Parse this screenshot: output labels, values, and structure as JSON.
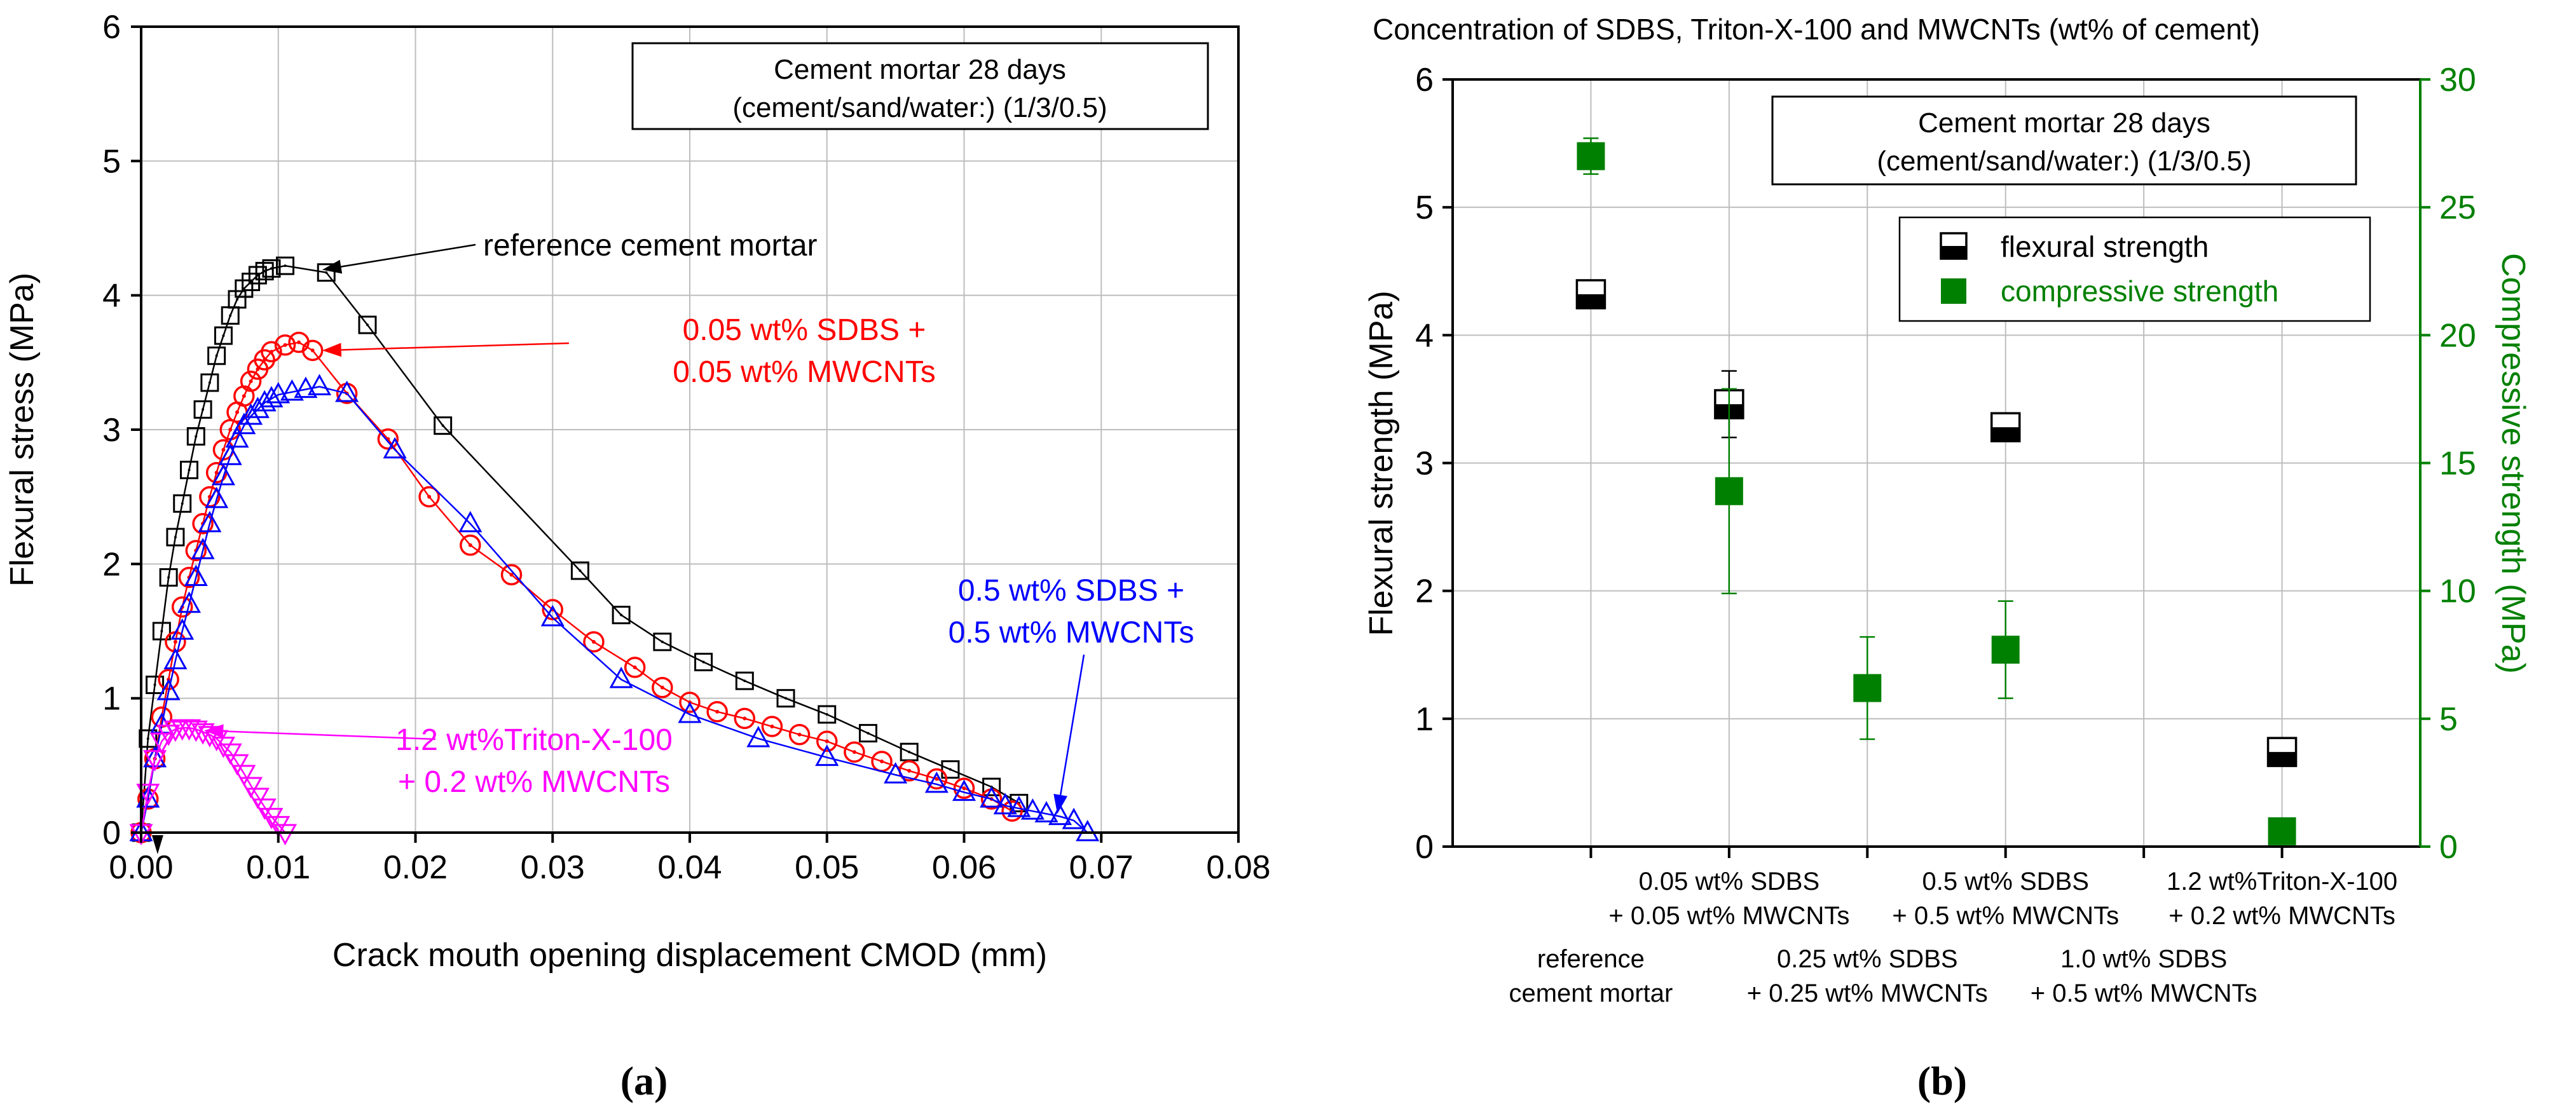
{
  "chart_data": [
    {
      "id": "a",
      "type": "line",
      "panel_label": "(a)",
      "xlabel": "Crack mouth opening displacement CMOD (mm)",
      "ylabel": "Flexural stress (MPa)",
      "xlim": [
        0,
        0.08
      ],
      "ylim": [
        0,
        6
      ],
      "xticks": [
        0.0,
        0.01,
        0.02,
        0.03,
        0.04,
        0.05,
        0.06,
        0.07,
        0.08
      ],
      "xtick_labels": [
        "0.00",
        "0.01",
        "0.02",
        "0.03",
        "0.04",
        "0.05",
        "0.06",
        "0.07",
        "0.08"
      ],
      "yticks": [
        0,
        1,
        2,
        3,
        4,
        5,
        6
      ],
      "ytick_labels": [
        "0",
        "1",
        "2",
        "3",
        "4",
        "5",
        "6"
      ],
      "box": {
        "line1": "Cement mortar 28 days",
        "line2": "(cement/sand/water:) (1/3/0.5)"
      },
      "series": [
        {
          "name": "reference cement mortar",
          "label_lines": [
            "reference cement mortar"
          ],
          "marker": "square",
          "color": "#000000",
          "x": [
            0,
            0.0005,
            0.001,
            0.0015,
            0.002,
            0.0025,
            0.003,
            0.0035,
            0.004,
            0.0045,
            0.005,
            0.0055,
            0.006,
            0.0065,
            0.007,
            0.0075,
            0.008,
            0.0085,
            0.009,
            0.0095,
            0.0105,
            0.0135,
            0.0165,
            0.022,
            0.032,
            0.035,
            0.038,
            0.041,
            0.044,
            0.047,
            0.05,
            0.053,
            0.056,
            0.059,
            0.062,
            0.064
          ],
          "y": [
            0,
            0.7,
            1.1,
            1.5,
            1.9,
            2.2,
            2.45,
            2.7,
            2.95,
            3.15,
            3.35,
            3.55,
            3.7,
            3.85,
            3.97,
            4.05,
            4.1,
            4.15,
            4.18,
            4.2,
            4.22,
            4.17,
            3.78,
            3.03,
            1.95,
            1.62,
            1.42,
            1.27,
            1.13,
            1.0,
            0.88,
            0.74,
            0.6,
            0.47,
            0.34,
            0.22
          ]
        },
        {
          "name": "0.05 wt% SDBS + 0.05 wt% MWCNTs",
          "label_lines": [
            "0.05 wt% SDBS +",
            "0.05 wt% MWCNTs"
          ],
          "marker": "circle-dot",
          "color": "#ff0000",
          "x": [
            0,
            0.0005,
            0.001,
            0.0015,
            0.002,
            0.0025,
            0.003,
            0.0035,
            0.004,
            0.0045,
            0.005,
            0.0055,
            0.006,
            0.0065,
            0.007,
            0.0075,
            0.008,
            0.0085,
            0.009,
            0.0095,
            0.0105,
            0.0115,
            0.0125,
            0.015,
            0.018,
            0.021,
            0.024,
            0.027,
            0.03,
            0.033,
            0.036,
            0.038,
            0.04,
            0.042,
            0.044,
            0.046,
            0.048,
            0.05,
            0.052,
            0.054,
            0.056,
            0.058,
            0.06,
            0.062,
            0.0635
          ],
          "y": [
            0,
            0.25,
            0.55,
            0.86,
            1.14,
            1.42,
            1.68,
            1.9,
            2.1,
            2.3,
            2.5,
            2.68,
            2.85,
            3.0,
            3.13,
            3.25,
            3.36,
            3.45,
            3.52,
            3.58,
            3.63,
            3.65,
            3.59,
            3.27,
            2.93,
            2.5,
            2.14,
            1.92,
            1.66,
            1.42,
            1.23,
            1.08,
            0.97,
            0.9,
            0.85,
            0.79,
            0.73,
            0.68,
            0.6,
            0.53,
            0.46,
            0.4,
            0.33,
            0.25,
            0.16
          ]
        },
        {
          "name": "0.5 wt% SDBS + 0.5 wt% MWCNTs",
          "label_lines": [
            "0.5 wt% SDBS +",
            "0.5 wt% MWCNTs"
          ],
          "marker": "triangle",
          "color": "#0000ff",
          "x": [
            0,
            0.0005,
            0.001,
            0.0015,
            0.002,
            0.0025,
            0.003,
            0.0035,
            0.004,
            0.0045,
            0.005,
            0.0055,
            0.006,
            0.0065,
            0.007,
            0.0075,
            0.008,
            0.0085,
            0.009,
            0.0095,
            0.01,
            0.011,
            0.012,
            0.013,
            0.015,
            0.0185,
            0.024,
            0.03,
            0.035,
            0.04,
            0.045,
            0.05,
            0.055,
            0.058,
            0.06,
            0.062,
            0.063,
            0.064,
            0.065,
            0.066,
            0.067,
            0.068,
            0.069
          ],
          "y": [
            0,
            0.25,
            0.55,
            0.8,
            1.05,
            1.28,
            1.5,
            1.7,
            1.9,
            2.1,
            2.3,
            2.48,
            2.65,
            2.8,
            2.93,
            3.03,
            3.1,
            3.15,
            3.2,
            3.23,
            3.26,
            3.28,
            3.3,
            3.32,
            3.27,
            2.85,
            2.3,
            1.6,
            1.14,
            0.88,
            0.7,
            0.56,
            0.43,
            0.36,
            0.3,
            0.25,
            0.2,
            0.18,
            0.16,
            0.14,
            0.12,
            0.09,
            0.0
          ]
        },
        {
          "name": "1.2 wt%Triton-X-100 + 0.2 wt% MWCNTs",
          "label_lines": [
            "1.2 wt%Triton-X-100",
            "+ 0.2 wt% MWCNTs"
          ],
          "marker": "triangle-down",
          "color": "#ff00ff",
          "x": [
            0,
            0.0005,
            0.001,
            0.0015,
            0.002,
            0.0025,
            0.003,
            0.0035,
            0.004,
            0.0045,
            0.005,
            0.0055,
            0.006,
            0.0065,
            0.007,
            0.0075,
            0.008,
            0.0085,
            0.009,
            0.0095,
            0.01,
            0.0105
          ],
          "y": [
            0,
            0.3,
            0.55,
            0.68,
            0.74,
            0.77,
            0.78,
            0.78,
            0.77,
            0.75,
            0.73,
            0.7,
            0.65,
            0.6,
            0.52,
            0.44,
            0.35,
            0.27,
            0.19,
            0.12,
            0.06,
            0.0
          ]
        }
      ]
    },
    {
      "id": "b",
      "type": "scatter",
      "panel_label": "(b)",
      "title": "Concentration of SDBS, Triton-X-100 and MWCNTs (wt% of cement)",
      "ylabel": "Flexural strength (MPa)",
      "y2label": "Compressive strength (MPa)",
      "ylim": [
        0,
        6
      ],
      "y2lim": [
        0,
        30
      ],
      "yticks": [
        0,
        1,
        2,
        3,
        4,
        5,
        6
      ],
      "ytick_labels": [
        "0",
        "1",
        "2",
        "3",
        "4",
        "5",
        "6"
      ],
      "y2ticks": [
        0,
        5,
        10,
        15,
        20,
        25,
        30
      ],
      "y2tick_labels": [
        "0",
        "5",
        "10",
        "15",
        "20",
        "25",
        "30"
      ],
      "box": {
        "line1": "Cement mortar 28 days",
        "line2": "(cement/sand/water:) (1/3/0.5)"
      },
      "legend": {
        "flexural": "flexural strength",
        "compressive": "compressive strength",
        "position": "top-right"
      },
      "categories": [
        {
          "lines": [
            "reference",
            "cement mortar"
          ],
          "row": "low"
        },
        {
          "lines": [
            "0.05 wt% SDBS",
            "+ 0.05 wt% MWCNTs"
          ],
          "row": "high"
        },
        {
          "lines": [
            "0.25 wt% SDBS",
            "+ 0.25 wt% MWCNTs"
          ],
          "row": "low"
        },
        {
          "lines": [
            "0.5 wt% SDBS",
            "+ 0.5 wt% MWCNTs"
          ],
          "row": "high"
        },
        {
          "lines": [
            "1.0 wt% SDBS",
            "+ 0.5 wt% MWCNTs"
          ],
          "row": "low"
        },
        {
          "lines": [
            "1.2 wt%Triton-X-100",
            "+ 0.2 wt% MWCNTs"
          ],
          "row": "high"
        }
      ],
      "series": [
        {
          "name": "flexural strength",
          "axis": "left",
          "color": "#000000",
          "marker": "half-filled-square",
          "values": [
            4.32,
            3.46,
            null,
            3.28,
            null,
            0.74
          ],
          "err": [
            0.08,
            0.26,
            null,
            0.07,
            null,
            0.08
          ]
        },
        {
          "name": "compressive strength",
          "axis": "right",
          "color": "#008000",
          "marker": "filled-square",
          "values": [
            27.0,
            13.9,
            6.2,
            7.7,
            null,
            0.6
          ],
          "err": [
            0.7,
            4.0,
            2.0,
            1.9,
            null,
            0.0
          ]
        }
      ]
    }
  ]
}
